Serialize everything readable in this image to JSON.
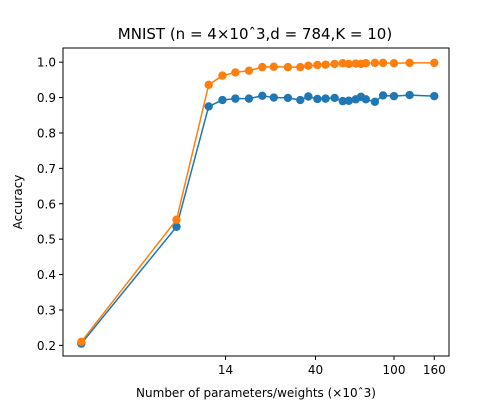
{
  "chart_data": {
    "type": "line",
    "title": "MNIST (n = 4×10ˆ3,d = 784,K = 10)",
    "xlabel": "Number of parameters/weights (×10ˆ3)",
    "ylabel": "Accuracy",
    "x_scale": "log",
    "xlim": [
      2.1,
      190
    ],
    "ylim": [
      0.17,
      1.04
    ],
    "x_ticks": [
      14,
      40,
      100,
      160
    ],
    "y_ticks": [
      0.2,
      0.3,
      0.4,
      0.5,
      0.6,
      0.7,
      0.8,
      0.9,
      1.0
    ],
    "grid": false,
    "series": [
      {
        "color": "#1f77b4",
        "x": [
          2.6,
          7.9,
          11.5,
          13.5,
          15.7,
          18.4,
          21.5,
          24.6,
          29,
          33.5,
          36.8,
          40.9,
          45,
          50,
          55,
          59,
          64,
          68,
          72,
          80,
          88,
          100,
          120,
          160
        ],
        "y": [
          0.205,
          0.535,
          0.875,
          0.893,
          0.897,
          0.897,
          0.905,
          0.9,
          0.899,
          0.893,
          0.903,
          0.896,
          0.897,
          0.899,
          0.89,
          0.891,
          0.895,
          0.902,
          0.895,
          0.888,
          0.906,
          0.904,
          0.907,
          0.904
        ]
      },
      {
        "color": "#ff7f0e",
        "x": [
          2.6,
          7.9,
          11.5,
          13.5,
          15.7,
          18.4,
          21.5,
          24.6,
          29,
          33.5,
          36.8,
          40.9,
          45,
          50,
          55,
          59,
          64,
          68,
          72,
          80,
          88,
          100,
          120,
          160
        ],
        "y": [
          0.21,
          0.555,
          0.936,
          0.962,
          0.971,
          0.976,
          0.986,
          0.987,
          0.986,
          0.986,
          0.99,
          0.992,
          0.993,
          0.995,
          0.997,
          0.995,
          0.996,
          0.995,
          0.997,
          0.998,
          0.998,
          0.997,
          0.998,
          0.998
        ]
      }
    ]
  }
}
